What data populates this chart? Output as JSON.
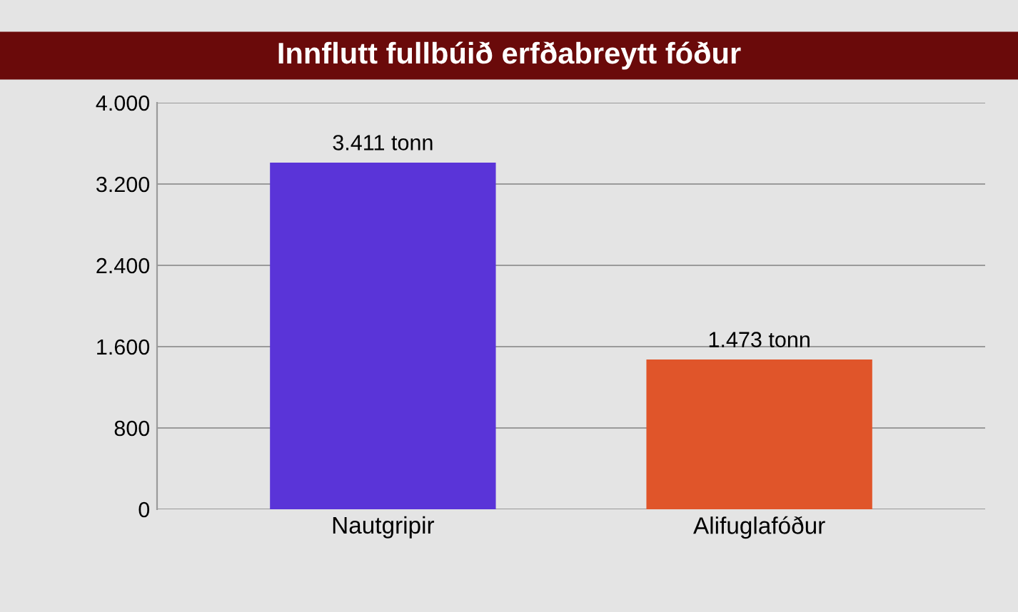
{
  "chart_data": {
    "type": "bar",
    "title": "Innflutt fullbúið erfðabreytt fóður",
    "categories": [
      "Nautgripir",
      "Alifuglafóður"
    ],
    "values": [
      3411,
      1473
    ],
    "colors": [
      "#5a34d8",
      "#e0552a"
    ],
    "value_labels": [
      "3.411 tonn",
      "1.473 tonn"
    ],
    "ylim": [
      0,
      4000
    ],
    "yticks": [
      0,
      800,
      {
        "value": 1600,
        "label": "1.600"
      },
      {
        "value": 2400,
        "label": "2.400"
      },
      {
        "value": 3200,
        "label": "3.200"
      },
      {
        "value": 4000,
        "label": "4.000"
      }
    ],
    "grid": "y"
  }
}
